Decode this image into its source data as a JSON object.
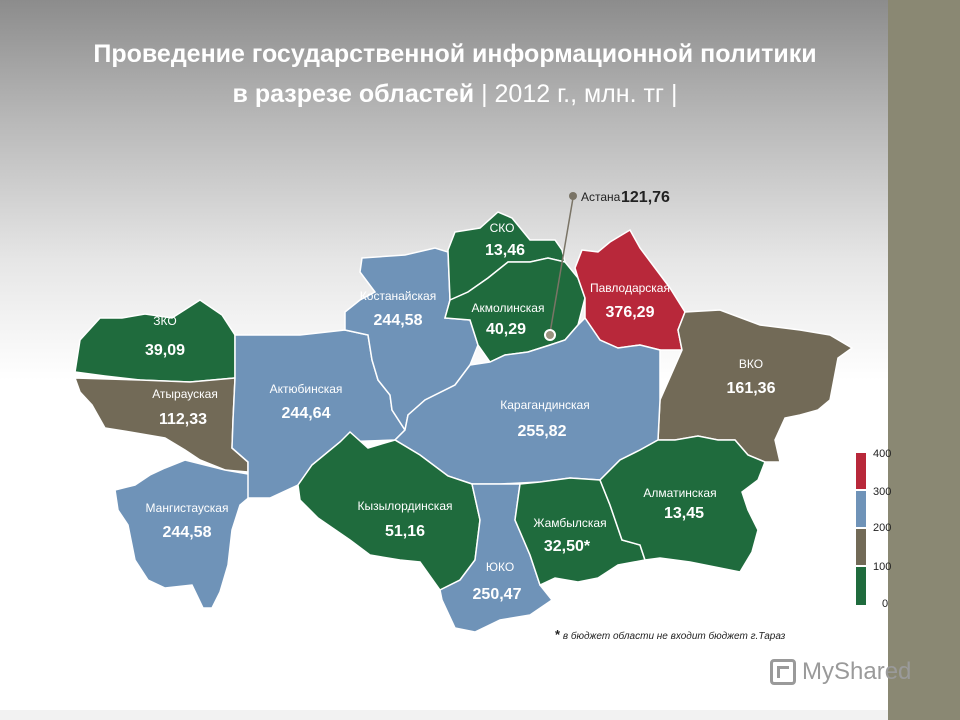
{
  "title": {
    "line1": "Проведение государственной информационной политики",
    "line2_bold": "в разрезе областей",
    "line2_light": " | 2012 г., млн. тг |"
  },
  "regions": [
    {
      "id": "zko",
      "name": "ЗКО",
      "value": "39,09",
      "color": "#1f6b3d"
    },
    {
      "id": "atyrau",
      "name": "Атырауская",
      "value": "112,33",
      "color": "#726a57"
    },
    {
      "id": "mangistau",
      "name": "Мангистауская",
      "value": "244,58",
      "color": "#6f93b8"
    },
    {
      "id": "aktobe",
      "name": "Актюбинская",
      "value": "244,64",
      "color": "#6f93b8"
    },
    {
      "id": "kostanay",
      "name": "Костанайская",
      "value": "244,58",
      "color": "#6f93b8"
    },
    {
      "id": "sko",
      "name": "СКО",
      "value": "13,46",
      "color": "#1f6b3d"
    },
    {
      "id": "akmola",
      "name": "Акмолинская",
      "value": "40,29",
      "color": "#1f6b3d"
    },
    {
      "id": "pavlodar",
      "name": "Павлодарская",
      "value": "376,29",
      "color": "#b8283a"
    },
    {
      "id": "vko",
      "name": "ВКО",
      "value": "161,36",
      "color": "#726a57"
    },
    {
      "id": "karaganda",
      "name": "Карагандинская",
      "value": "255,82",
      "color": "#6f93b8"
    },
    {
      "id": "kyzylorda",
      "name": "Кызылординская",
      "value": "51,16",
      "color": "#1f6b3d"
    },
    {
      "id": "yuko",
      "name": "ЮКО",
      "value": "250,47",
      "color": "#6f93b8"
    },
    {
      "id": "zhambyl",
      "name": "Жамбылская",
      "value": "32,50*",
      "color": "#1f6b3d"
    },
    {
      "id": "almaty",
      "name": "Алматинская",
      "value": "13,45",
      "color": "#1f6b3d"
    }
  ],
  "capital": {
    "name": "Астана",
    "value": "121,76"
  },
  "legend": {
    "ticks": [
      "400",
      "300",
      "200",
      "100",
      "0"
    ],
    "bins": [
      {
        "from": 300,
        "to": 400,
        "color": "#b8283a"
      },
      {
        "from": 200,
        "to": 300,
        "color": "#6f93b8"
      },
      {
        "from": 100,
        "to": 200,
        "color": "#726a57"
      },
      {
        "from": 0,
        "to": 100,
        "color": "#1f6b3d"
      }
    ]
  },
  "footnote": {
    "star": "*",
    "text": " в бюджет области не входит бюджет г.Тараз"
  },
  "watermark": "MyShared"
}
